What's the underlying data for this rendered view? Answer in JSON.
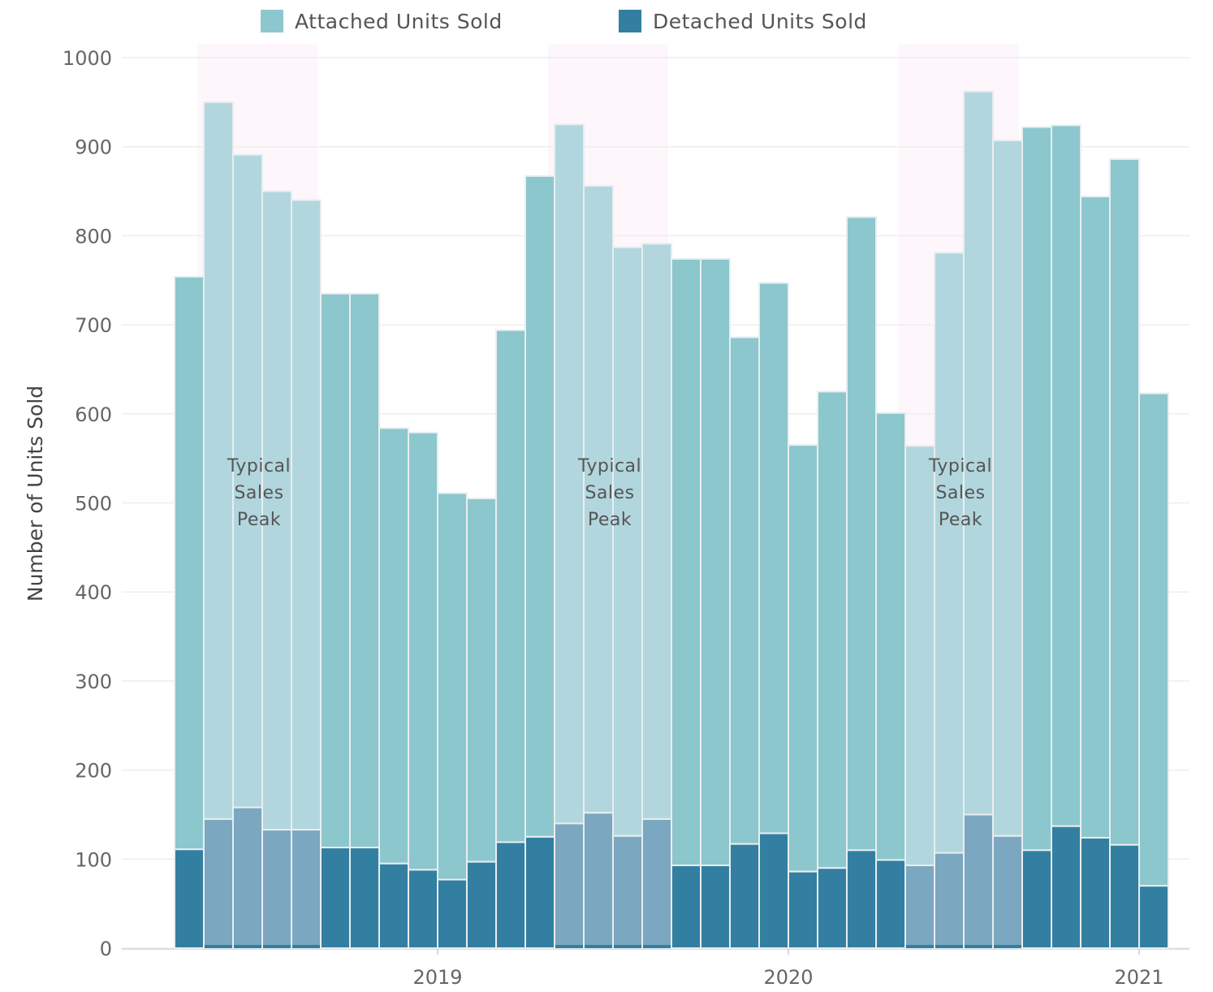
{
  "chart_data": {
    "type": "bar",
    "stacked": true,
    "title": "",
    "ylabel": "Number of Units Sold",
    "xlabel": "",
    "ylim": [
      0,
      1000
    ],
    "yticks": [
      0,
      100,
      200,
      300,
      400,
      500,
      600,
      700,
      800,
      900,
      1000
    ],
    "xtick_labels": [
      {
        "label": "2019",
        "after_index": 8
      },
      {
        "label": "2020",
        "after_index": 20
      },
      {
        "label": "2021",
        "after_index": 32
      }
    ],
    "grid": true,
    "legend_position": "top",
    "series": [
      {
        "name": "Attached Units Sold",
        "color": "#8cc7cd",
        "values": [
          643,
          805,
          733,
          717,
          707,
          622,
          622,
          489,
          491,
          434,
          408,
          575,
          742,
          785,
          704,
          661,
          646,
          681,
          681,
          569,
          618,
          479,
          535,
          711,
          502,
          471,
          674,
          812,
          781,
          812,
          787,
          720,
          770,
          553
        ]
      },
      {
        "name": "Detached Units Sold",
        "color": "#337fa1",
        "values": [
          111,
          145,
          158,
          133,
          133,
          113,
          113,
          95,
          88,
          77,
          97,
          119,
          125,
          140,
          152,
          126,
          145,
          93,
          93,
          117,
          129,
          86,
          90,
          110,
          99,
          93,
          107,
          150,
          126,
          110,
          137,
          124,
          116,
          70
        ]
      }
    ],
    "highlight_bands": [
      {
        "label": "Typical Sales Peak",
        "start_index": 1,
        "end_index": 4
      },
      {
        "label": "Typical Sales Peak",
        "start_index": 13,
        "end_index": 16
      },
      {
        "label": "Typical Sales Peak",
        "start_index": 25,
        "end_index": 28
      }
    ],
    "annotation_lines": [
      "Typical",
      "Sales",
      "Peak"
    ],
    "colors": {
      "attached": "#8cc7cd",
      "attached_highlight": "#b2d6dd",
      "detached": "#337fa1",
      "detached_highlight": "#7ba7c1",
      "band": "#fdf6fb",
      "grid": "#eeeeee"
    }
  }
}
